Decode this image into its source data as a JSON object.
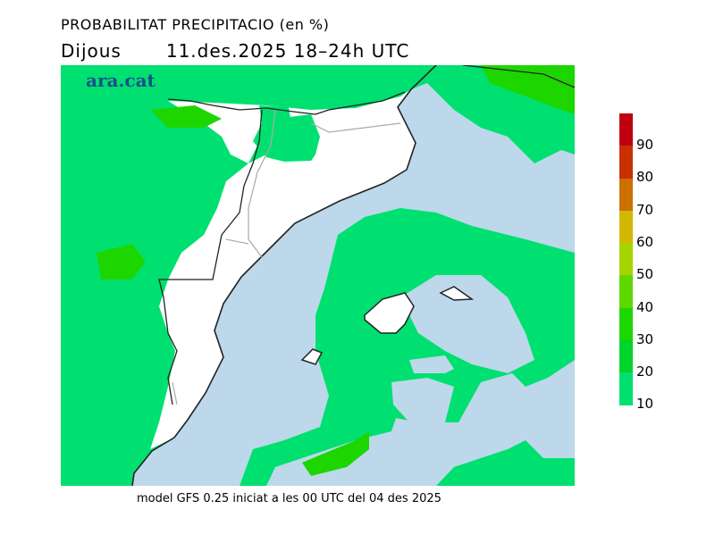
{
  "title": "PROBABILITAT PRECIPITACIO (en %)",
  "subtitle": {
    "day": "Dijous",
    "date_time": "11.des.2025 18–24h UTC"
  },
  "logo": "ara.cat",
  "footer": "model GFS 0.25 iniciat a les 00 UTC del 04 des 2025",
  "colors": {
    "sea": "#bcd8ea",
    "land": "#ffffff",
    "p10": "#00e070",
    "p20": "#00d42a",
    "p30": "#1dd600",
    "p40": "#5fd800",
    "p50": "#a6d400",
    "p60": "#d2b800",
    "p70": "#cc7000",
    "p80": "#c83000",
    "p90": "#c00010"
  },
  "legend": {
    "labels": [
      "90",
      "80",
      "70",
      "60",
      "50",
      "40",
      "30",
      "20",
      "10"
    ],
    "colors_top_to_bottom": [
      "#c00010",
      "#c83000",
      "#cc7000",
      "#d2b800",
      "#a6d400",
      "#5fd800",
      "#1dd600",
      "#00d42a",
      "#00e070"
    ]
  }
}
